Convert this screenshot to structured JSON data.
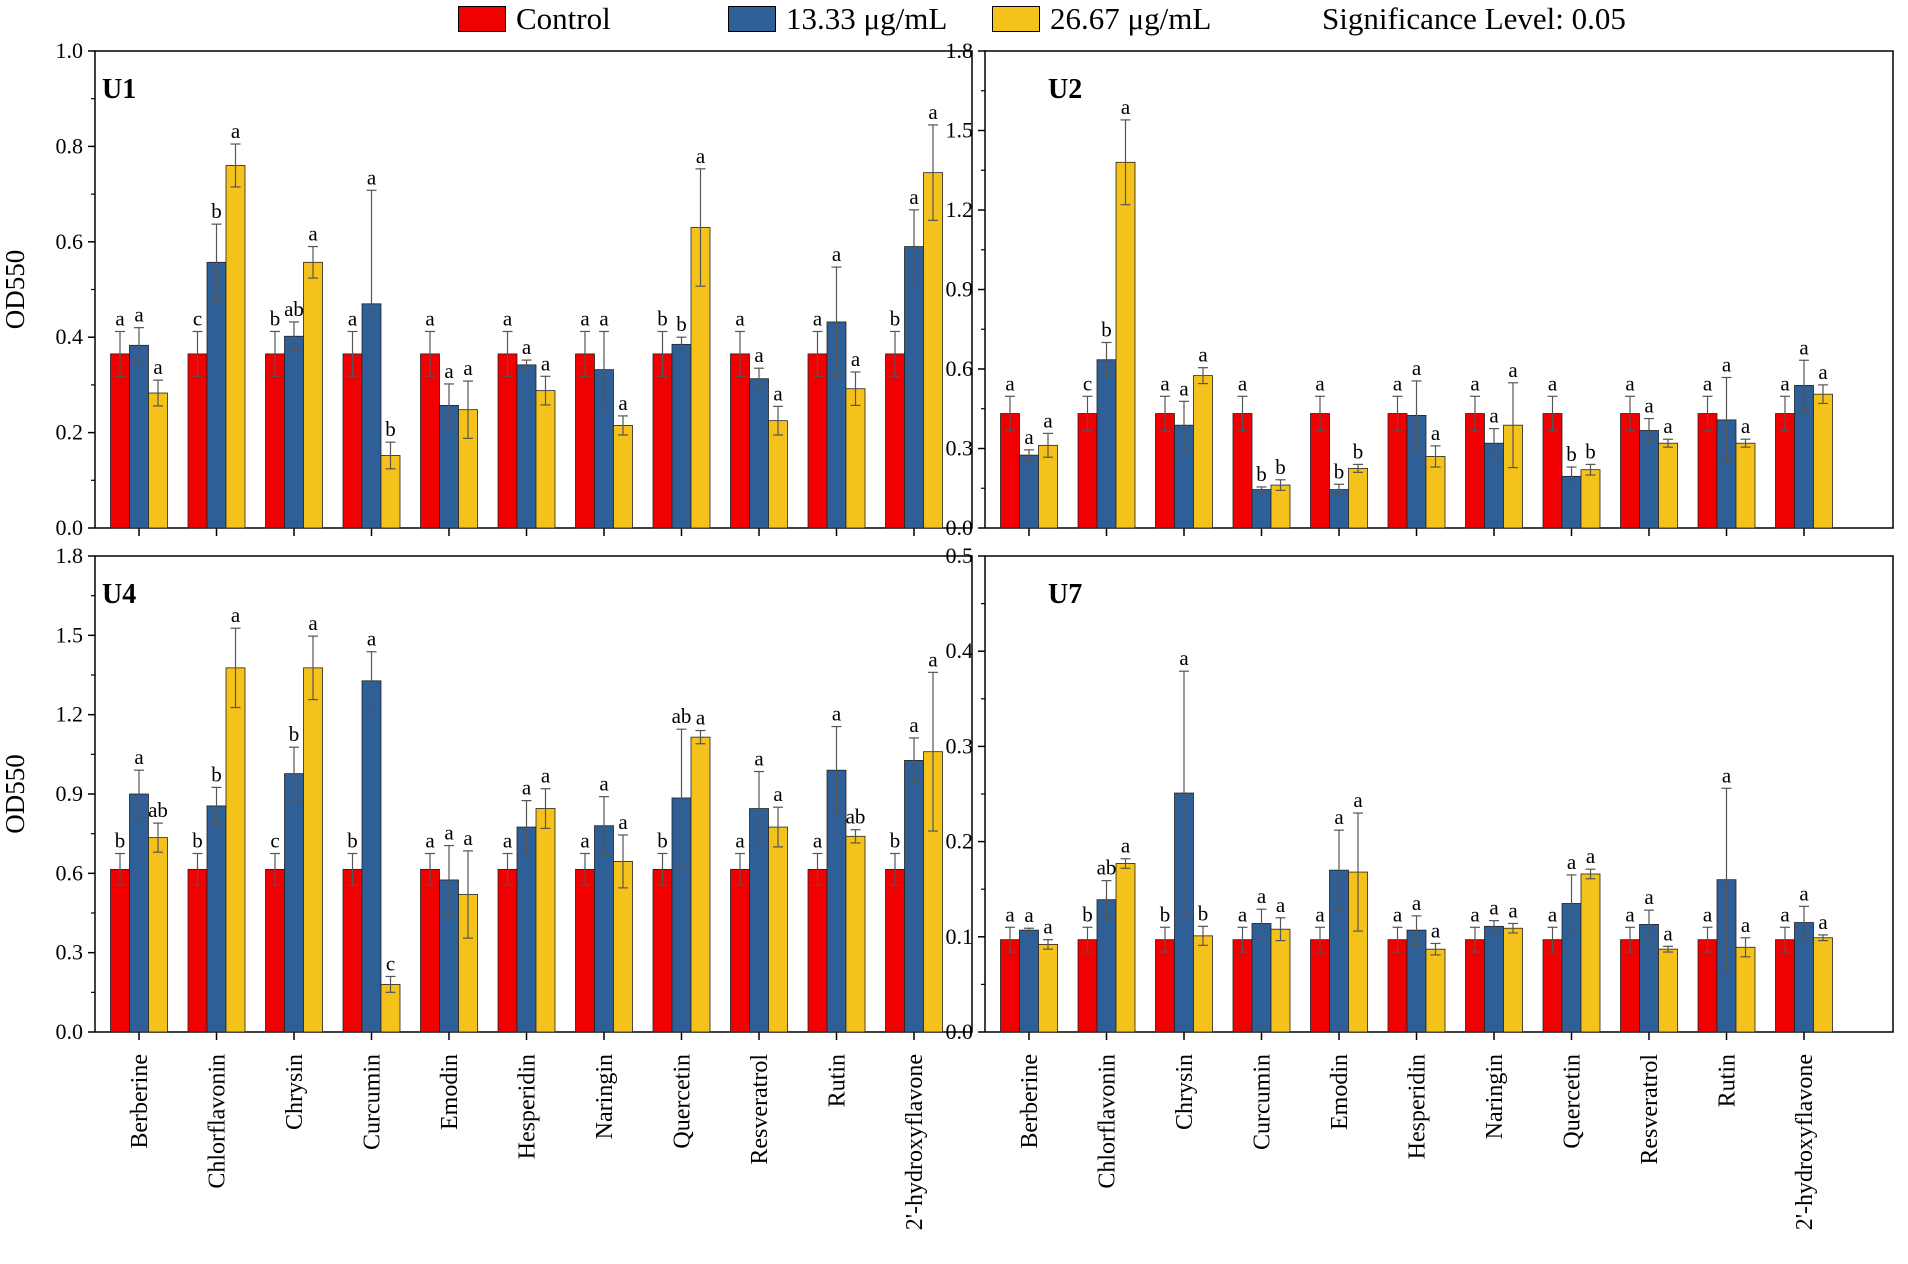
{
  "legend": {
    "control_label": "Control",
    "low_label": "13.33 μg/mL",
    "high_label": "26.67 μg/mL",
    "significance_text": "Significance Level: 0.05"
  },
  "colors": {
    "control": "#f00000",
    "low": "#2f5f97",
    "high": "#f5c21b"
  },
  "chart_data": [
    {
      "type": "bar",
      "panel": "U1",
      "ylabel": "OD550",
      "ylim": [
        0,
        1.0
      ],
      "yticks": [
        "0.0",
        "0.2",
        "0.4",
        "0.6",
        "0.8",
        "1.0"
      ],
      "categories": [
        "Berberine",
        "Chlorflavonin",
        "Chrysin",
        "Curcumin",
        "Emodin",
        "Hesperidin",
        "Naringin",
        "Quercetin",
        "Resveratrol",
        "Rutin",
        "2'-hydroxyflavone"
      ],
      "series": [
        {
          "name": "Control",
          "values": [
            0.365,
            0.365,
            0.365,
            0.365,
            0.365,
            0.365,
            0.365,
            0.365,
            0.365,
            0.365,
            0.365
          ],
          "errors": [
            0.047,
            0.047,
            0.047,
            0.047,
            0.047,
            0.047,
            0.047,
            0.047,
            0.047,
            0.047,
            0.047
          ],
          "letters": [
            "a",
            "c",
            "b",
            "a",
            "a",
            "a",
            "a",
            "b",
            "a",
            "a",
            "b"
          ]
        },
        {
          "name": "13.33 μg/mL",
          "values": [
            0.383,
            0.557,
            0.402,
            0.47,
            0.257,
            0.342,
            0.332,
            0.385,
            0.313,
            0.432,
            0.59
          ],
          "errors": [
            0.037,
            0.08,
            0.03,
            0.238,
            0.045,
            0.01,
            0.08,
            0.015,
            0.022,
            0.115,
            0.077
          ],
          "letters": [
            "a",
            "b",
            "ab",
            "a",
            "a",
            "a",
            "a",
            "b",
            "a",
            "a",
            "a"
          ]
        },
        {
          "name": "26.67 μg/mL",
          "values": [
            0.283,
            0.76,
            0.557,
            0.152,
            0.248,
            0.288,
            0.215,
            0.63,
            0.225,
            0.292,
            0.745
          ],
          "errors": [
            0.027,
            0.045,
            0.033,
            0.028,
            0.06,
            0.03,
            0.02,
            0.123,
            0.03,
            0.035,
            0.1
          ],
          "letters": [
            "a",
            "a",
            "a",
            "b",
            "a",
            "a",
            "a",
            "a",
            "a",
            "a",
            "a"
          ]
        }
      ]
    },
    {
      "type": "bar",
      "panel": "U2",
      "ylabel": "",
      "ylim": [
        0,
        1.8
      ],
      "yticks": [
        "0.0",
        "0.3",
        "0.6",
        "0.9",
        "1.2",
        "1.5",
        "1.8"
      ],
      "categories": [
        "Berberine",
        "Chlorflavonin",
        "Chrysin",
        "Curcumin",
        "Emodin",
        "Hesperidin",
        "Naringin",
        "Quercetin",
        "Resveratrol",
        "Rutin",
        "2'-hydroxyflavone"
      ],
      "series": [
        {
          "name": "Control",
          "values": [
            0.432,
            0.432,
            0.432,
            0.432,
            0.432,
            0.432,
            0.432,
            0.432,
            0.432,
            0.432,
            0.432
          ],
          "errors": [
            0.065,
            0.065,
            0.065,
            0.065,
            0.065,
            0.065,
            0.065,
            0.065,
            0.065,
            0.065,
            0.065
          ],
          "letters": [
            "a",
            "c",
            "a",
            "a",
            "a",
            "a",
            "a",
            "a",
            "a",
            "a",
            "a"
          ]
        },
        {
          "name": "13.33 μg/mL",
          "values": [
            0.275,
            0.635,
            0.388,
            0.145,
            0.145,
            0.425,
            0.32,
            0.195,
            0.368,
            0.408,
            0.538
          ],
          "errors": [
            0.02,
            0.065,
            0.09,
            0.01,
            0.02,
            0.13,
            0.055,
            0.035,
            0.045,
            0.16,
            0.095
          ],
          "letters": [
            "a",
            "b",
            "a",
            "b",
            "b",
            "a",
            "a",
            "b",
            "a",
            "a",
            "a"
          ]
        },
        {
          "name": "26.67 μg/mL",
          "values": [
            0.312,
            1.38,
            0.575,
            0.162,
            0.225,
            0.27,
            0.388,
            0.22,
            0.32,
            0.32,
            0.505
          ],
          "errors": [
            0.045,
            0.16,
            0.03,
            0.02,
            0.015,
            0.04,
            0.16,
            0.02,
            0.015,
            0.015,
            0.035
          ],
          "letters": [
            "a",
            "a",
            "a",
            "b",
            "b",
            "a",
            "a",
            "b",
            "a",
            "a",
            "a"
          ]
        }
      ]
    },
    {
      "type": "bar",
      "panel": "U4",
      "ylabel": "OD550",
      "ylim": [
        0,
        1.8
      ],
      "yticks": [
        "0.0",
        "0.3",
        "0.6",
        "0.9",
        "1.2",
        "1.5",
        "1.8"
      ],
      "categories": [
        "Berberine",
        "Chlorflavonin",
        "Chrysin",
        "Curcumin",
        "Emodin",
        "Hesperidin",
        "Naringin",
        "Quercetin",
        "Resveratrol",
        "Rutin",
        "2'-hydroxyflavone"
      ],
      "series": [
        {
          "name": "Control",
          "values": [
            0.615,
            0.615,
            0.615,
            0.615,
            0.615,
            0.615,
            0.615,
            0.615,
            0.615,
            0.615,
            0.615
          ],
          "errors": [
            0.06,
            0.06,
            0.06,
            0.06,
            0.06,
            0.06,
            0.06,
            0.06,
            0.06,
            0.06,
            0.06
          ],
          "letters": [
            "b",
            "b",
            "c",
            "b",
            "a",
            "a",
            "a",
            "b",
            "a",
            "a",
            "b"
          ]
        },
        {
          "name": "13.33 μg/mL",
          "values": [
            0.9,
            0.855,
            0.977,
            1.328,
            0.575,
            0.775,
            0.78,
            0.885,
            0.845,
            0.99,
            1.027
          ],
          "errors": [
            0.09,
            0.07,
            0.1,
            0.11,
            0.13,
            0.1,
            0.11,
            0.26,
            0.14,
            0.165,
            0.085
          ],
          "letters": [
            "a",
            "b",
            "b",
            "a",
            "a",
            "a",
            "a",
            "ab",
            "a",
            "a",
            "a"
          ]
        },
        {
          "name": "26.67 μg/mL",
          "values": [
            0.735,
            1.377,
            1.377,
            0.18,
            0.52,
            0.845,
            0.645,
            1.115,
            0.775,
            0.74,
            1.06
          ],
          "errors": [
            0.055,
            0.15,
            0.12,
            0.03,
            0.165,
            0.075,
            0.1,
            0.025,
            0.075,
            0.025,
            0.3
          ],
          "letters": [
            "ab",
            "a",
            "a",
            "c",
            "a",
            "a",
            "a",
            "a",
            "a",
            "ab",
            "a"
          ]
        }
      ]
    },
    {
      "type": "bar",
      "panel": "U7",
      "ylabel": "",
      "ylim": [
        0,
        0.5
      ],
      "yticks": [
        "0.0",
        "0.1",
        "0.2",
        "0.3",
        "0.4",
        "0.5"
      ],
      "categories": [
        "Berberine",
        "Chlorflavonin",
        "Chrysin",
        "Curcumin",
        "Emodin",
        "Hesperidin",
        "Naringin",
        "Quercetin",
        "Resveratrol",
        "Rutin",
        "2'-hydroxyflavone"
      ],
      "series": [
        {
          "name": "Control",
          "values": [
            0.097,
            0.097,
            0.097,
            0.097,
            0.097,
            0.097,
            0.097,
            0.097,
            0.097,
            0.097,
            0.097
          ],
          "errors": [
            0.013,
            0.013,
            0.013,
            0.013,
            0.013,
            0.013,
            0.013,
            0.013,
            0.013,
            0.013,
            0.013
          ],
          "letters": [
            "a",
            "b",
            "b",
            "a",
            "a",
            "a",
            "a",
            "a",
            "a",
            "a",
            "a"
          ]
        },
        {
          "name": "13.33 μg/mL",
          "values": [
            0.107,
            0.139,
            0.251,
            0.114,
            0.17,
            0.107,
            0.111,
            0.135,
            0.113,
            0.16,
            0.115
          ],
          "errors": [
            0.002,
            0.02,
            0.128,
            0.015,
            0.042,
            0.015,
            0.006,
            0.03,
            0.015,
            0.096,
            0.017
          ],
          "letters": [
            "a",
            "ab",
            "a",
            "a",
            "a",
            "a",
            "a",
            "a",
            "a",
            "a",
            "a"
          ]
        },
        {
          "name": "26.67 μg/mL",
          "values": [
            0.092,
            0.177,
            0.101,
            0.108,
            0.168,
            0.087,
            0.109,
            0.166,
            0.087,
            0.089,
            0.099
          ],
          "errors": [
            0.005,
            0.005,
            0.01,
            0.012,
            0.062,
            0.006,
            0.005,
            0.005,
            0.003,
            0.01,
            0.003
          ],
          "letters": [
            "a",
            "a",
            "b",
            "a",
            "a",
            "a",
            "a",
            "a",
            "a",
            "a",
            "a"
          ]
        }
      ]
    }
  ]
}
